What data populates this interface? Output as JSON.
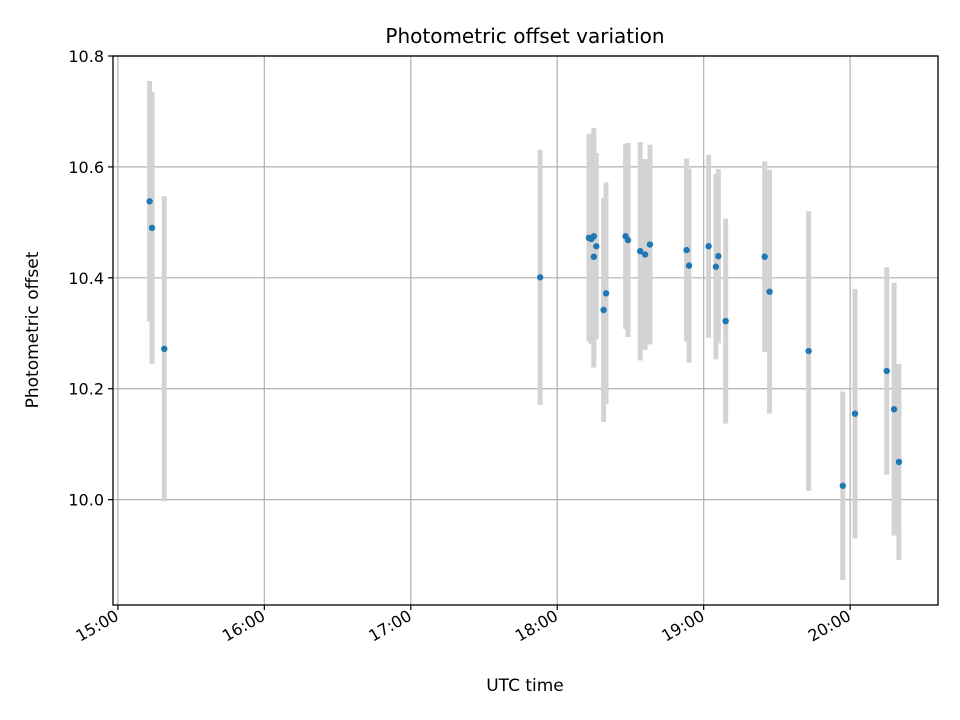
{
  "chart_data": {
    "type": "scatter",
    "title": "Photometric offset variation",
    "xlabel": "UTC time",
    "ylabel": "Photometric offset",
    "x_tick_labels": [
      "15:00",
      "16:00",
      "17:00",
      "18:00",
      "19:00",
      "20:00"
    ],
    "y_tick_labels": [
      "10.0",
      "10.2",
      "10.4",
      "10.6",
      "10.8"
    ],
    "xlim": [
      "14:58",
      "20:36"
    ],
    "ylim": [
      9.81,
      10.8
    ],
    "grid": true,
    "point_color": "#1f77b4",
    "errorbar_color": "#d3d3d3",
    "points": [
      {
        "x": "15:13",
        "y": 10.538,
        "err": 0.217
      },
      {
        "x": "15:14",
        "y": 10.49,
        "err": 0.245
      },
      {
        "x": "15:19",
        "y": 10.272,
        "err": 0.275
      },
      {
        "x": "17:53",
        "y": 10.401,
        "err": 0.23
      },
      {
        "x": "18:13",
        "y": 10.472,
        "err": 0.187
      },
      {
        "x": "18:14",
        "y": 10.47,
        "err": 0.19
      },
      {
        "x": "18:15",
        "y": 10.475,
        "err": 0.195
      },
      {
        "x": "18:15",
        "y": 10.438,
        "err": 0.2
      },
      {
        "x": "18:16",
        "y": 10.457,
        "err": 0.168
      },
      {
        "x": "18:19",
        "y": 10.342,
        "err": 0.202
      },
      {
        "x": "18:20",
        "y": 10.372,
        "err": 0.2
      },
      {
        "x": "18:28",
        "y": 10.475,
        "err": 0.167
      },
      {
        "x": "18:29",
        "y": 10.468,
        "err": 0.175
      },
      {
        "x": "18:34",
        "y": 10.448,
        "err": 0.197
      },
      {
        "x": "18:36",
        "y": 10.442,
        "err": 0.172
      },
      {
        "x": "18:38",
        "y": 10.46,
        "err": 0.18
      },
      {
        "x": "18:53",
        "y": 10.45,
        "err": 0.165
      },
      {
        "x": "18:54",
        "y": 10.422,
        "err": 0.175
      },
      {
        "x": "19:02",
        "y": 10.457,
        "err": 0.165
      },
      {
        "x": "19:05",
        "y": 10.42,
        "err": 0.167
      },
      {
        "x": "19:06",
        "y": 10.439,
        "err": 0.157
      },
      {
        "x": "19:09",
        "y": 10.322,
        "err": 0.185
      },
      {
        "x": "19:25",
        "y": 10.438,
        "err": 0.172
      },
      {
        "x": "19:27",
        "y": 10.375,
        "err": 0.22
      },
      {
        "x": "19:43",
        "y": 10.268,
        "err": 0.252
      },
      {
        "x": "19:57",
        "y": 10.025,
        "err": 0.17
      },
      {
        "x": "20:02",
        "y": 10.155,
        "err": 0.225
      },
      {
        "x": "20:15",
        "y": 10.232,
        "err": 0.187
      },
      {
        "x": "20:18",
        "y": 10.163,
        "err": 0.228
      },
      {
        "x": "20:20",
        "y": 10.068,
        "err": 0.177
      }
    ]
  }
}
